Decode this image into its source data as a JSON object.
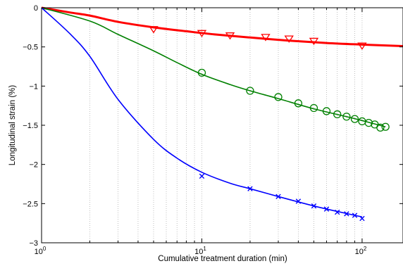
{
  "chart_data": {
    "type": "line",
    "title": "",
    "xlabel": "Cumulative treatment duration (min)",
    "ylabel": "Longitudinal strain (%)",
    "x_scale": "log",
    "xlim": [
      1,
      180
    ],
    "ylim": [
      -3,
      0
    ],
    "grid": "x-major-minor-dotted",
    "x_ticks": [
      {
        "base": "10",
        "exp": "0"
      },
      {
        "base": "10",
        "exp": "1"
      },
      {
        "base": "10",
        "exp": "2"
      }
    ],
    "y_ticks": [
      "0",
      "-0.5",
      "-1",
      "-1.5",
      "-2",
      "-2.5",
      "-3"
    ],
    "series": [
      {
        "color": "#ff0000",
        "marker": "triangle-down",
        "points": [
          [
            5,
            -0.27
          ],
          [
            10,
            -0.32
          ],
          [
            15,
            -0.35
          ],
          [
            25,
            -0.37
          ],
          [
            35,
            -0.39
          ],
          [
            50,
            -0.42
          ],
          [
            100,
            -0.48
          ]
        ],
        "fit": [
          [
            1,
            0
          ],
          [
            1.5,
            -0.06
          ],
          [
            2,
            -0.1
          ],
          [
            3,
            -0.18
          ],
          [
            5,
            -0.25
          ],
          [
            8,
            -0.3
          ],
          [
            12,
            -0.34
          ],
          [
            20,
            -0.38
          ],
          [
            35,
            -0.42
          ],
          [
            60,
            -0.45
          ],
          [
            100,
            -0.47
          ],
          [
            180,
            -0.49
          ]
        ]
      },
      {
        "color": "#008000",
        "marker": "circle",
        "points": [
          [
            10,
            -0.83
          ],
          [
            20,
            -1.06
          ],
          [
            30,
            -1.14
          ],
          [
            40,
            -1.22
          ],
          [
            50,
            -1.28
          ],
          [
            60,
            -1.32
          ],
          [
            70,
            -1.36
          ],
          [
            80,
            -1.39
          ],
          [
            90,
            -1.42
          ],
          [
            100,
            -1.45
          ],
          [
            110,
            -1.47
          ],
          [
            120,
            -1.49
          ],
          [
            130,
            -1.53
          ],
          [
            140,
            -1.52
          ]
        ],
        "fit": [
          [
            1,
            0
          ],
          [
            2,
            -0.17
          ],
          [
            3,
            -0.34
          ],
          [
            5,
            -0.55
          ],
          [
            7,
            -0.7
          ],
          [
            10,
            -0.85
          ],
          [
            15,
            -0.98
          ],
          [
            20,
            -1.06
          ],
          [
            30,
            -1.16
          ],
          [
            50,
            -1.29
          ],
          [
            80,
            -1.39
          ],
          [
            100,
            -1.44
          ],
          [
            140,
            -1.52
          ]
        ]
      },
      {
        "color": "#0000ff",
        "marker": "x",
        "points": [
          [
            10,
            -2.15
          ],
          [
            20,
            -2.31
          ],
          [
            30,
            -2.41
          ],
          [
            40,
            -2.47
          ],
          [
            50,
            -2.53
          ],
          [
            60,
            -2.57
          ],
          [
            70,
            -2.61
          ],
          [
            80,
            -2.63
          ],
          [
            90,
            -2.65
          ],
          [
            100,
            -2.69
          ]
        ],
        "fit": [
          [
            1,
            0
          ],
          [
            1.5,
            -0.33
          ],
          [
            2,
            -0.62
          ],
          [
            3,
            -1.17
          ],
          [
            5,
            -1.68
          ],
          [
            7,
            -1.92
          ],
          [
            10,
            -2.1
          ],
          [
            15,
            -2.24
          ],
          [
            20,
            -2.31
          ],
          [
            30,
            -2.41
          ],
          [
            50,
            -2.53
          ],
          [
            70,
            -2.6
          ],
          [
            100,
            -2.67
          ]
        ]
      }
    ]
  }
}
